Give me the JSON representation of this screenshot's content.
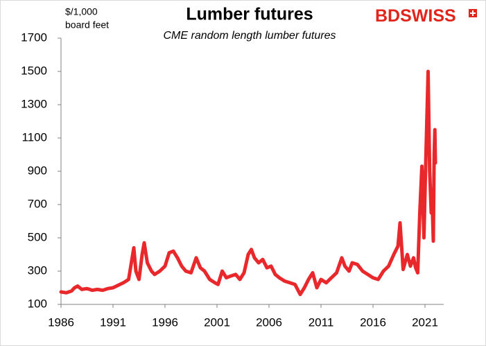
{
  "chart_data": {
    "type": "line",
    "title": "Lumber futures",
    "subtitle": "CME random length lumber futures",
    "ylabel": [
      "$/1,000",
      "board feet"
    ],
    "logo": {
      "bd": "BD",
      "swiss": "SWISS"
    },
    "color": "#e8282b",
    "grid": false,
    "xlim": [
      1986,
      2022.8
    ],
    "xticks": [
      1986,
      1991,
      1996,
      2001,
      2006,
      2011,
      2016,
      2021
    ],
    "ylim": [
      100,
      1700
    ],
    "yticks": [
      100,
      300,
      500,
      700,
      900,
      1100,
      1300,
      1500,
      1700
    ],
    "x": [
      1986.0,
      1986.5,
      1987.0,
      1987.3,
      1987.6,
      1988.0,
      1988.5,
      1989.0,
      1989.5,
      1990.0,
      1990.5,
      1991.0,
      1991.5,
      1992.0,
      1992.5,
      1993.0,
      1993.2,
      1993.5,
      1993.8,
      1994.0,
      1994.3,
      1994.7,
      1995.0,
      1995.5,
      1996.0,
      1996.4,
      1996.8,
      1997.2,
      1997.6,
      1998.0,
      1998.5,
      1999.0,
      1999.4,
      1999.8,
      2000.3,
      2000.8,
      2001.1,
      2001.5,
      2001.9,
      2002.3,
      2002.8,
      2003.2,
      2003.6,
      2004.0,
      2004.3,
      2004.6,
      2005.0,
      2005.4,
      2005.8,
      2006.2,
      2006.6,
      2007.0,
      2007.5,
      2008.0,
      2008.5,
      2009.0,
      2009.4,
      2009.8,
      2010.2,
      2010.6,
      2011.0,
      2011.5,
      2012.0,
      2012.5,
      2013.0,
      2013.3,
      2013.7,
      2014.0,
      2014.5,
      2015.0,
      2015.5,
      2016.0,
      2016.5,
      2017.0,
      2017.5,
      2018.0,
      2018.4,
      2018.6,
      2018.9,
      2019.3,
      2019.6,
      2019.9,
      2020.1,
      2020.3,
      2020.5,
      2020.7,
      2020.9,
      2021.05,
      2021.3,
      2021.45,
      2021.6,
      2021.7,
      2021.8,
      2021.88,
      2021.95,
      2022.0
    ],
    "values": [
      175,
      170,
      180,
      200,
      210,
      190,
      195,
      185,
      190,
      185,
      195,
      200,
      215,
      230,
      250,
      440,
      300,
      250,
      400,
      470,
      350,
      300,
      280,
      300,
      330,
      410,
      420,
      380,
      330,
      300,
      290,
      380,
      320,
      300,
      250,
      230,
      220,
      300,
      260,
      270,
      280,
      250,
      290,
      400,
      430,
      380,
      350,
      370,
      320,
      330,
      280,
      260,
      240,
      230,
      220,
      160,
      200,
      250,
      290,
      200,
      250,
      230,
      260,
      290,
      380,
      330,
      300,
      350,
      340,
      300,
      280,
      260,
      250,
      300,
      330,
      400,
      450,
      590,
      310,
      400,
      330,
      380,
      320,
      290,
      650,
      930,
      500,
      900,
      1500,
      900,
      650,
      700,
      480,
      1000,
      1150,
      950
    ]
  }
}
